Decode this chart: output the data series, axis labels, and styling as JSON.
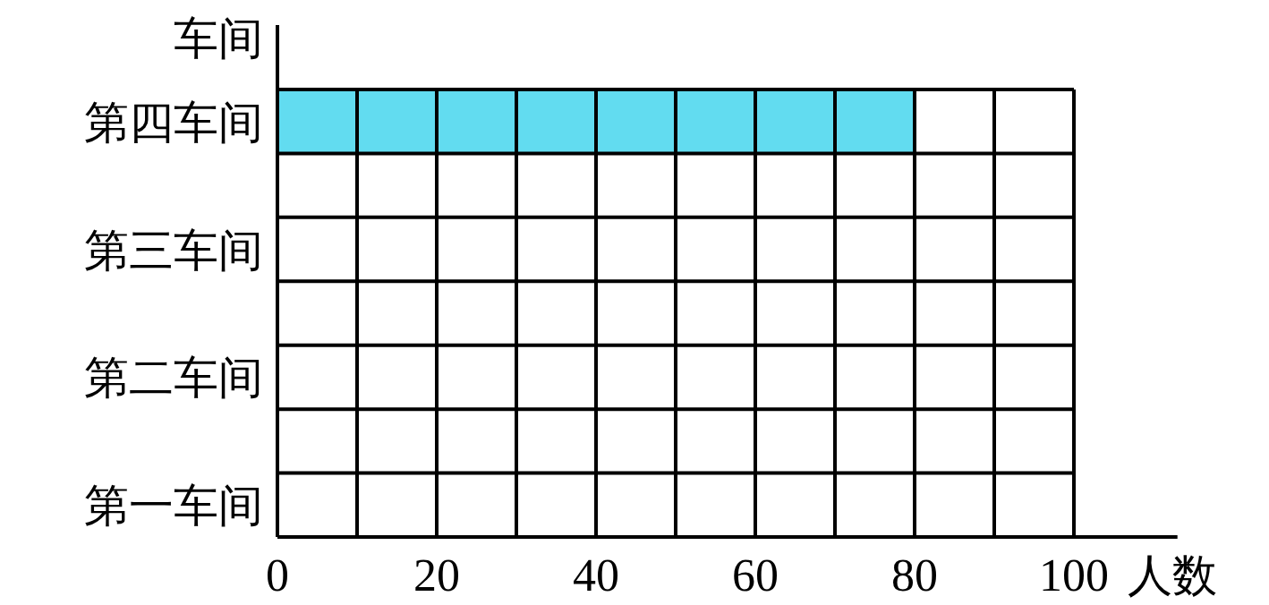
{
  "chart_data": {
    "type": "bar",
    "orientation": "horizontal",
    "ylabel": "车间",
    "xlabel": "人数",
    "categories": [
      "第四车间",
      null,
      "第三车间",
      null,
      "第二车间",
      null,
      "第一车间"
    ],
    "values": [
      80,
      null,
      null,
      null,
      null,
      null,
      null
    ],
    "color": "#62dcf0",
    "xlim": [
      0,
      113
    ],
    "xticks": [
      0,
      {
        "value": 10,
        "label": null
      },
      20,
      {
        "value": 30,
        "label": null
      },
      40,
      {
        "value": 50,
        "label": null
      },
      60,
      {
        "value": 70,
        "label": null
      },
      80,
      {
        "value": 90,
        "label": null
      },
      100
    ],
    "grid": true
  }
}
